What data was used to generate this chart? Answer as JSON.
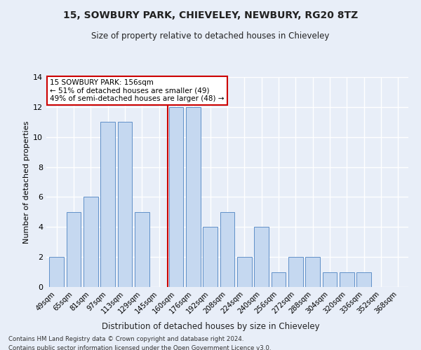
{
  "title1": "15, SOWBURY PARK, CHIEVELEY, NEWBURY, RG20 8TZ",
  "title2": "Size of property relative to detached houses in Chieveley",
  "xlabel": "Distribution of detached houses by size in Chieveley",
  "ylabel": "Number of detached properties",
  "bar_labels": [
    "49sqm",
    "65sqm",
    "81sqm",
    "97sqm",
    "113sqm",
    "129sqm",
    "145sqm",
    "160sqm",
    "176sqm",
    "192sqm",
    "208sqm",
    "224sqm",
    "240sqm",
    "256sqm",
    "272sqm",
    "288sqm",
    "304sqm",
    "320sqm",
    "336sqm",
    "352sqm",
    "368sqm"
  ],
  "bar_values": [
    2,
    5,
    6,
    11,
    11,
    5,
    0,
    12,
    12,
    4,
    5,
    2,
    4,
    1,
    2,
    2,
    1,
    1,
    1,
    0,
    0
  ],
  "bar_color": "#c5d8f0",
  "bar_edge_color": "#6090c8",
  "highlight_line_color": "#cc0000",
  "annotation_line1": "15 SOWBURY PARK: 156sqm",
  "annotation_line2": "← 51% of detached houses are smaller (49)",
  "annotation_line3": "49% of semi-detached houses are larger (48) →",
  "annotation_box_color": "#ffffff",
  "annotation_box_edge_color": "#cc0000",
  "bg_color": "#e8eef8",
  "plot_bg_color": "#e8eef8",
  "grid_color": "#ffffff",
  "footnote_line1": "Contains HM Land Registry data © Crown copyright and database right 2024.",
  "footnote_line2": "Contains public sector information licensed under the Open Government Licence v3.0.",
  "ylim": [
    0,
    14
  ],
  "yticks": [
    0,
    2,
    4,
    6,
    8,
    10,
    12,
    14
  ],
  "highlight_line_xidx": 6.5
}
